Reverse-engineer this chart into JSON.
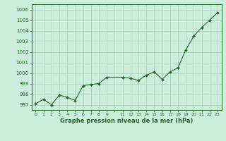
{
  "x": [
    0,
    1,
    2,
    3,
    4,
    5,
    6,
    7,
    8,
    9,
    11,
    12,
    13,
    14,
    15,
    16,
    17,
    18,
    19,
    20,
    21,
    22,
    23
  ],
  "y": [
    997.1,
    997.5,
    997.0,
    997.9,
    997.7,
    997.4,
    998.8,
    998.9,
    999.0,
    999.6,
    999.6,
    999.5,
    999.3,
    999.8,
    1000.1,
    999.4,
    1000.1,
    1000.5,
    1002.2,
    1003.5,
    1004.3,
    1005.0,
    1005.7
  ],
  "line_color": "#1e6b1e",
  "marker_color": "#1e6b1e",
  "bg_color": "#cceedd",
  "grid_color": "#aaccbb",
  "xlabel": "Graphe pression niveau de la mer (hPa)",
  "ylim_min": 996.5,
  "ylim_max": 1006.5,
  "xlim_min": -0.5,
  "xlim_max": 23.5,
  "yticks": [
    997,
    998,
    999,
    1000,
    1001,
    1002,
    1003,
    1004,
    1005,
    1006
  ],
  "xtick_labels": [
    "0",
    "1",
    "2",
    "3",
    "4",
    "5",
    "6",
    "7",
    "8",
    "9",
    "",
    "11",
    "12",
    "13",
    "14",
    "15",
    "16",
    "17",
    "18",
    "19",
    "20",
    "21",
    "22",
    "23"
  ],
  "xticks_pos": [
    0,
    1,
    2,
    3,
    4,
    5,
    6,
    7,
    8,
    9,
    10,
    11,
    12,
    13,
    14,
    15,
    16,
    17,
    18,
    19,
    20,
    21,
    22,
    23
  ]
}
